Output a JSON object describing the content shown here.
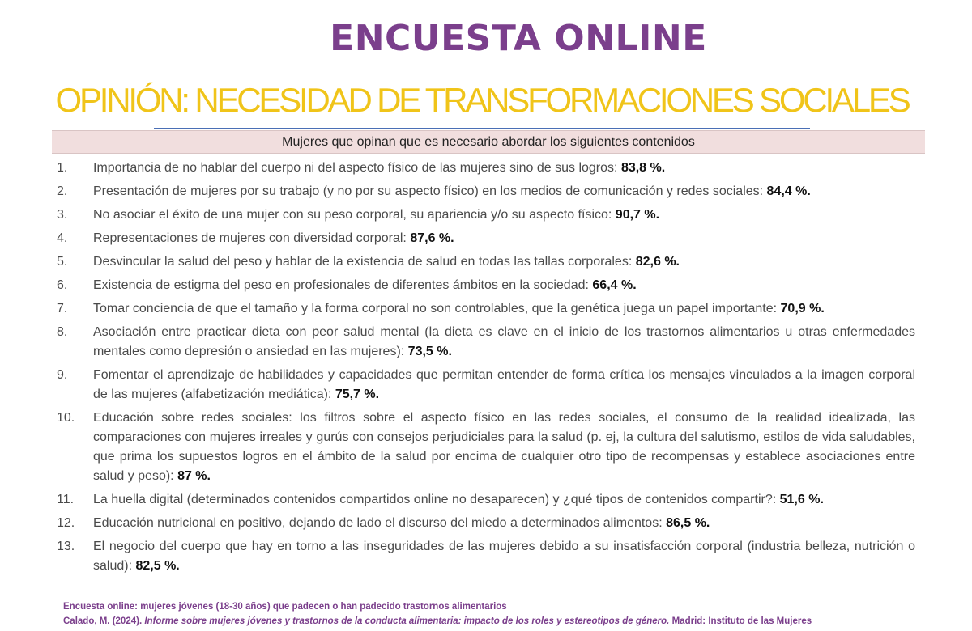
{
  "title": "ENCUESTA ONLINE",
  "subtitle": "OPINIÓN: NECESIDAD DE TRANSFORMACIONES SOCIALES",
  "table_header": "Mujeres que opinan que es necesario abordar los siguientes contenidos",
  "items": [
    {
      "num": "1.",
      "text": "Importancia de no hablar del cuerpo ni del aspecto físico de las mujeres sino de sus logros:",
      "pct": "83,8 %."
    },
    {
      "num": "2.",
      "text": "Presentación de mujeres por su trabajo (y no por su aspecto físico) en los medios de comunicación y redes sociales:",
      "pct": "84,4 %."
    },
    {
      "num": "3.",
      "text": "No asociar el éxito de una mujer con su peso corporal, su apariencia y/o su aspecto físico:",
      "pct": "90,7 %."
    },
    {
      "num": "4.",
      "text": "Representaciones de mujeres con diversidad corporal:",
      "pct": "87,6 %."
    },
    {
      "num": "5.",
      "text": "Desvincular la salud del peso y hablar de la existencia de salud en todas las tallas corporales:",
      "pct": "82,6 %."
    },
    {
      "num": "6.",
      "text": "Existencia de estigma del peso en profesionales de diferentes ámbitos en la sociedad:",
      "pct": "66,4 %."
    },
    {
      "num": "7.",
      "text": "Tomar conciencia de que el tamaño y la forma corporal no son controlables, que la genética juega un papel importante:",
      "pct": "70,9 %."
    },
    {
      "num": "8.",
      "text": "Asociación entre practicar dieta con peor salud mental (la dieta es clave en el inicio de los trastornos alimentarios u otras enfermedades mentales como depresión o ansiedad en las mujeres):",
      "pct": "73,5 %."
    },
    {
      "num": "9.",
      "text": "Fomentar el aprendizaje de habilidades y capacidades que permitan entender de forma crítica los mensajes vinculados a la imagen corporal de las mujeres (alfabetización mediática):",
      "pct": "75,7 %."
    },
    {
      "num": "10.",
      "text": "Educación sobre redes sociales: los filtros sobre el aspecto físico en las redes sociales, el consumo de la realidad idealizada, las comparaciones con mujeres irreales y gurús con consejos perjudiciales para la salud (p. ej, la cultura del salutismo, estilos de vida saludables, que prima los supuestos logros en el ámbito de la salud por encima de cualquier otro tipo de recompensas y establece asociaciones entre salud y peso):",
      "pct": "87 %."
    },
    {
      "num": "11.",
      "text": "La huella digital (determinados contenidos compartidos online no desaparecen) y ¿qué tipos de contenidos compartir?:",
      "pct": "51,6 %."
    },
    {
      "num": "12.",
      "text": "Educación nutricional en positivo, dejando de lado el discurso del miedo a determinados alimentos:",
      "pct": "86,5 %."
    },
    {
      "num": "13.",
      "text": "El negocio del cuerpo que hay en torno a las inseguridades de las mujeres debido a su insatisfacción corporal (industria belleza, nutrición o salud):",
      "pct": "82,5 %."
    }
  ],
  "footer": {
    "line1": "Encuesta online: mujeres jóvenes (18-30 años) que padecen o han padecido trastornos alimentarios",
    "author": "Calado, M. (2024).",
    "work_title": "Informe sobre mujeres jóvenes y trastornos de la conducta alimentaria: impacto de los roles y estereotipos de género.",
    "publisher": "Madrid: Instituto de las Mujeres"
  },
  "colors": {
    "title": "#7b3f8c",
    "subtitle": "#f0c419",
    "divider": "#4a6fb5",
    "header_bg": "#f1dede",
    "footer": "#7b3f8c"
  }
}
